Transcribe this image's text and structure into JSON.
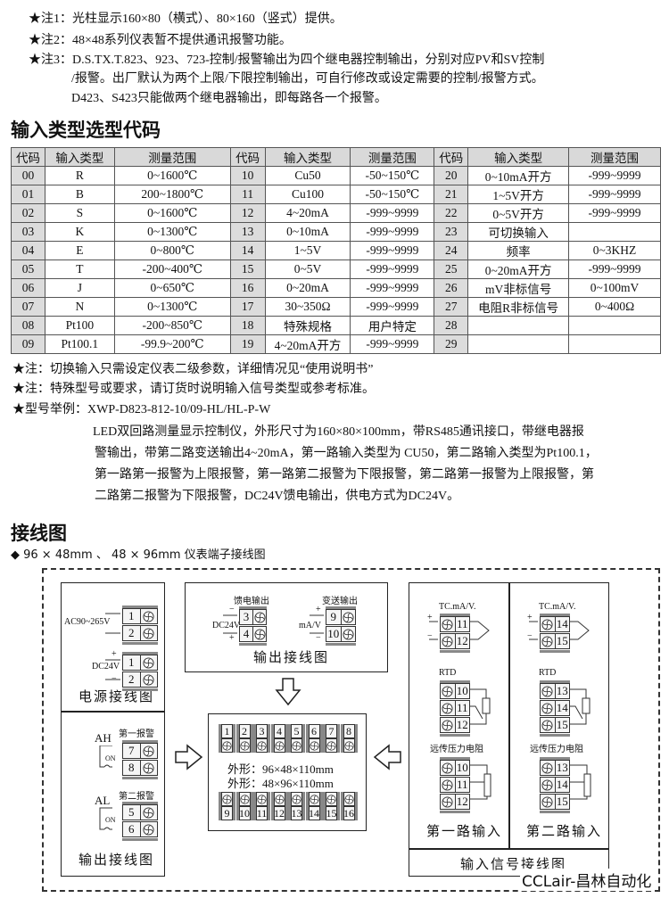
{
  "notes_top": [
    "★注1：光柱显示160×80（横式）、80×160（竖式）提供。",
    "★注2：48×48系列仪表暂不提供通讯报警功能。",
    "★注3：D.S.TX.T.823、923、723-控制/报警输出为四个继电器控制输出，分别对应PV和SV控制",
    "/报警。出厂默认为两个上限/下限控制输出，可自行修改或设定需要的控制/报警方式。",
    "D423、S423只能做两个继电器输出，即每路各一个报警。"
  ],
  "section1_title": "输入类型选型代码",
  "table": {
    "headers": [
      "代码",
      "输入类型",
      "测量范围",
      "代码",
      "输入类型",
      "测量范围",
      "代码",
      "输入类型",
      "测量范围"
    ],
    "rows": [
      [
        "00",
        "R",
        "0~1600℃",
        "10",
        "Cu50",
        "-50~150℃",
        "20",
        "0~10mA开方",
        "-999~9999"
      ],
      [
        "01",
        "B",
        "200~1800℃",
        "11",
        "Cu100",
        "-50~150℃",
        "21",
        "1~5V开方",
        "-999~9999"
      ],
      [
        "02",
        "S",
        "0~1600℃",
        "12",
        "4~20mA",
        "-999~9999",
        "22",
        "0~5V开方",
        "-999~9999"
      ],
      [
        "03",
        "K",
        "0~1300℃",
        "13",
        "0~10mA",
        "-999~9999",
        "23",
        "可切换输入",
        ""
      ],
      [
        "04",
        "E",
        "0~800℃",
        "14",
        "1~5V",
        "-999~9999",
        "24",
        "频率",
        "0~3KHZ"
      ],
      [
        "05",
        "T",
        "-200~400℃",
        "15",
        "0~5V",
        "-999~9999",
        "25",
        "0~20mA开方",
        "-999~9999"
      ],
      [
        "06",
        "J",
        "0~650℃",
        "16",
        "0~20mA",
        "-999~9999",
        "26",
        "mV非标信号",
        "0~100mV"
      ],
      [
        "07",
        "N",
        "0~1300℃",
        "17",
        "30~350Ω",
        "-999~9999",
        "27",
        "电阻R非标信号",
        "0~400Ω"
      ],
      [
        "08",
        "Pt100",
        "-200~850℃",
        "18",
        "特殊规格",
        "用户特定",
        "28",
        "",
        ""
      ],
      [
        "09",
        "Pt100.1",
        "-99.9~200℃",
        "19",
        "4~20mA开方",
        "-999~9999",
        "29",
        "",
        ""
      ]
    ]
  },
  "notes_mid": [
    "★注：切换输入只需设定仪表二级参数，详细情况见“使用说明书”",
    "★注：特殊型号或要求，请订货时说明输入信号类型或参考标准。",
    "★型号举例：XWP-D823-812-10/09-HL/HL-P-W"
  ],
  "example_lines": [
    "LED双回路测量显示控制仪，外形尺寸为160×80×100mm，带RS485通讯接口，带继电器报",
    "警输出，带第二路变送输出4~20mA，第一路输入类型为 CU50，第二路输入类型为Pt100.1，",
    "第一路第一报警为上限报警，第一路第二报警为下限报警，第二路第一报警为上限报警，第",
    "二路第二报警为下限报警，DC24V馈电输出，供电方式为DC24V。"
  ],
  "section2_title": "接线图",
  "section2_subtitle": "◆ 96 × 48mm 、 48 × 96mm 仪表端子接线图",
  "wiring": {
    "power": {
      "ac_label": "AC90~265V",
      "ac_terminals": [
        "1",
        "2"
      ],
      "dc_label": "DC24V",
      "dc_terminals": [
        "1",
        "2"
      ],
      "dc_signs": [
        "+",
        "−"
      ],
      "title": "电源接线图"
    },
    "alarm": {
      "a1_title": "第一报警",
      "a1_tag": "AH",
      "a1_terminals": [
        "7",
        "8"
      ],
      "a2_title": "第二报警",
      "a2_tag": "AL",
      "a2_terminals": [
        "5",
        "6"
      ],
      "switch_label": "ON",
      "title": "输出接线图"
    },
    "output": {
      "feed_title": "馈电输出",
      "feed_label": "DC24V",
      "feed_terminals": [
        "3",
        "4"
      ],
      "feed_signs": [
        "−",
        "+"
      ],
      "trans_title": "变送输出",
      "trans_label": "mA/V",
      "trans_terminals": [
        "9",
        "10"
      ],
      "trans_signs": [
        "+",
        "−"
      ],
      "title": "输出接线图"
    },
    "center": {
      "top_terminals": [
        "1",
        "2",
        "3",
        "4",
        "5",
        "6",
        "7",
        "8"
      ],
      "bottom_terminals": [
        "9",
        "10",
        "11",
        "12",
        "13",
        "14",
        "15",
        "16"
      ],
      "dim1": "外形：96×48×110mm",
      "dim2": "外形：48×96×110mm"
    },
    "input": {
      "ch1": {
        "tc_label": "TC.mA/V.",
        "tc_terminals": [
          "11",
          "12"
        ],
        "rtd_label": "RTD",
        "rtd_terminals": [
          "10",
          "11",
          "12"
        ],
        "res_label": "远传压力电阻",
        "res_terminals": [
          "10",
          "11",
          "12"
        ],
        "title": "第一路输入"
      },
      "ch2": {
        "tc_label": "TC.mA/V.",
        "tc_terminals": [
          "14",
          "15"
        ],
        "rtd_label": "RTD",
        "rtd_terminals": [
          "13",
          "14",
          "15"
        ],
        "res_label": "远传压力电阻",
        "res_terminals": [
          "13",
          "14",
          "15"
        ],
        "title": "第二路输入"
      },
      "signs": [
        "+",
        "−"
      ],
      "footer": "输入信号接线图"
    }
  },
  "watermark": "CCLair-昌林自动化"
}
